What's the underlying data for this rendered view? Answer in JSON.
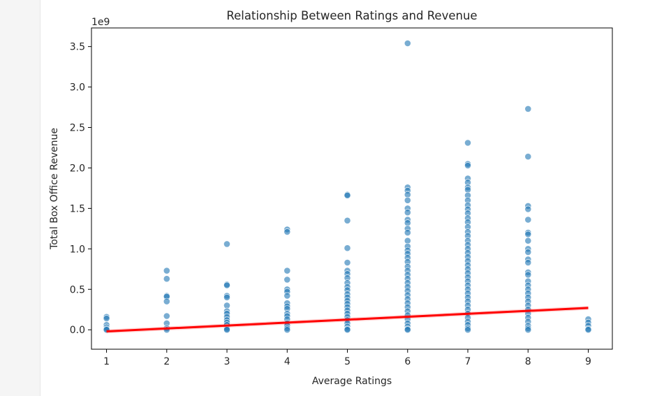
{
  "chart_data": {
    "type": "scatter",
    "title": "Relationship Between Ratings and Revenue",
    "xlabel": "Average Ratings",
    "ylabel": "Total Box Office Revenue",
    "y_offset_label": "1e9",
    "xlim": [
      0.75,
      9.4
    ],
    "ylim": [
      -0.24,
      3.73
    ],
    "x_ticks": [
      1,
      2,
      3,
      4,
      5,
      6,
      7,
      8,
      9
    ],
    "y_ticks": [
      0.0,
      0.5,
      1.0,
      1.5,
      2.0,
      2.5,
      3.0,
      3.5
    ],
    "y_tick_labels": [
      "0.0",
      "0.5",
      "1.0",
      "1.5",
      "2.0",
      "2.5",
      "3.0",
      "3.5"
    ],
    "grid": false,
    "point_color": "#1f77b4",
    "line_color": "#ff0000",
    "regression_line": {
      "x": [
        1,
        9
      ],
      "y": [
        -0.02,
        0.27
      ]
    },
    "points": [
      {
        "x": 1,
        "y": 0.16
      },
      {
        "x": 1,
        "y": 0.14
      },
      {
        "x": 1,
        "y": 0.06
      },
      {
        "x": 1,
        "y": 0.03
      },
      {
        "x": 1,
        "y": 0.01
      },
      {
        "x": 1,
        "y": 0.0
      },
      {
        "x": 2,
        "y": 0.73
      },
      {
        "x": 2,
        "y": 0.63
      },
      {
        "x": 2,
        "y": 0.42
      },
      {
        "x": 2,
        "y": 0.41
      },
      {
        "x": 2,
        "y": 0.35
      },
      {
        "x": 2,
        "y": 0.17
      },
      {
        "x": 2,
        "y": 0.08
      },
      {
        "x": 2,
        "y": 0.02
      },
      {
        "x": 2,
        "y": 0.0
      },
      {
        "x": 3,
        "y": 1.06
      },
      {
        "x": 3,
        "y": 0.56
      },
      {
        "x": 3,
        "y": 0.55
      },
      {
        "x": 3,
        "y": 0.42
      },
      {
        "x": 3,
        "y": 0.4
      },
      {
        "x": 3,
        "y": 0.3
      },
      {
        "x": 3,
        "y": 0.23
      },
      {
        "x": 3,
        "y": 0.2
      },
      {
        "x": 3,
        "y": 0.16
      },
      {
        "x": 3,
        "y": 0.12
      },
      {
        "x": 3,
        "y": 0.09
      },
      {
        "x": 3,
        "y": 0.06
      },
      {
        "x": 3,
        "y": 0.03
      },
      {
        "x": 3,
        "y": 0.01
      },
      {
        "x": 3,
        "y": 0.0
      },
      {
        "x": 4,
        "y": 1.24
      },
      {
        "x": 4,
        "y": 1.21
      },
      {
        "x": 4,
        "y": 0.73
      },
      {
        "x": 4,
        "y": 0.62
      },
      {
        "x": 4,
        "y": 0.5
      },
      {
        "x": 4,
        "y": 0.47
      },
      {
        "x": 4,
        "y": 0.42
      },
      {
        "x": 4,
        "y": 0.33
      },
      {
        "x": 4,
        "y": 0.29
      },
      {
        "x": 4,
        "y": 0.26
      },
      {
        "x": 4,
        "y": 0.2
      },
      {
        "x": 4,
        "y": 0.17
      },
      {
        "x": 4,
        "y": 0.13
      },
      {
        "x": 4,
        "y": 0.08
      },
      {
        "x": 4,
        "y": 0.05
      },
      {
        "x": 4,
        "y": 0.02
      },
      {
        "x": 4,
        "y": 0.0
      },
      {
        "x": 5,
        "y": 1.67
      },
      {
        "x": 5,
        "y": 1.66
      },
      {
        "x": 5,
        "y": 1.35
      },
      {
        "x": 5,
        "y": 1.01
      },
      {
        "x": 5,
        "y": 0.83
      },
      {
        "x": 5,
        "y": 0.73
      },
      {
        "x": 5,
        "y": 0.69
      },
      {
        "x": 5,
        "y": 0.64
      },
      {
        "x": 5,
        "y": 0.58
      },
      {
        "x": 5,
        "y": 0.53
      },
      {
        "x": 5,
        "y": 0.49
      },
      {
        "x": 5,
        "y": 0.44
      },
      {
        "x": 5,
        "y": 0.4
      },
      {
        "x": 5,
        "y": 0.36
      },
      {
        "x": 5,
        "y": 0.32
      },
      {
        "x": 5,
        "y": 0.28
      },
      {
        "x": 5,
        "y": 0.24
      },
      {
        "x": 5,
        "y": 0.2
      },
      {
        "x": 5,
        "y": 0.16
      },
      {
        "x": 5,
        "y": 0.12
      },
      {
        "x": 5,
        "y": 0.08
      },
      {
        "x": 5,
        "y": 0.04
      },
      {
        "x": 5,
        "y": 0.01
      },
      {
        "x": 5,
        "y": 0.0
      },
      {
        "x": 6,
        "y": 3.54
      },
      {
        "x": 6,
        "y": 1.76
      },
      {
        "x": 6,
        "y": 1.72
      },
      {
        "x": 6,
        "y": 1.67
      },
      {
        "x": 6,
        "y": 1.6
      },
      {
        "x": 6,
        "y": 1.5
      },
      {
        "x": 6,
        "y": 1.45
      },
      {
        "x": 6,
        "y": 1.36
      },
      {
        "x": 6,
        "y": 1.32
      },
      {
        "x": 6,
        "y": 1.25
      },
      {
        "x": 6,
        "y": 1.2
      },
      {
        "x": 6,
        "y": 1.1
      },
      {
        "x": 6,
        "y": 1.03
      },
      {
        "x": 6,
        "y": 0.98
      },
      {
        "x": 6,
        "y": 0.94
      },
      {
        "x": 6,
        "y": 0.89
      },
      {
        "x": 6,
        "y": 0.84
      },
      {
        "x": 6,
        "y": 0.78
      },
      {
        "x": 6,
        "y": 0.73
      },
      {
        "x": 6,
        "y": 0.68
      },
      {
        "x": 6,
        "y": 0.63
      },
      {
        "x": 6,
        "y": 0.58
      },
      {
        "x": 6,
        "y": 0.53
      },
      {
        "x": 6,
        "y": 0.48
      },
      {
        "x": 6,
        "y": 0.43
      },
      {
        "x": 6,
        "y": 0.38
      },
      {
        "x": 6,
        "y": 0.33
      },
      {
        "x": 6,
        "y": 0.28
      },
      {
        "x": 6,
        "y": 0.23
      },
      {
        "x": 6,
        "y": 0.18
      },
      {
        "x": 6,
        "y": 0.13
      },
      {
        "x": 6,
        "y": 0.08
      },
      {
        "x": 6,
        "y": 0.04
      },
      {
        "x": 6,
        "y": 0.01
      },
      {
        "x": 6,
        "y": 0.0
      },
      {
        "x": 7,
        "y": 2.31
      },
      {
        "x": 7,
        "y": 2.05
      },
      {
        "x": 7,
        "y": 2.03
      },
      {
        "x": 7,
        "y": 1.87
      },
      {
        "x": 7,
        "y": 1.82
      },
      {
        "x": 7,
        "y": 1.76
      },
      {
        "x": 7,
        "y": 1.73
      },
      {
        "x": 7,
        "y": 1.66
      },
      {
        "x": 7,
        "y": 1.6
      },
      {
        "x": 7,
        "y": 1.54
      },
      {
        "x": 7,
        "y": 1.49
      },
      {
        "x": 7,
        "y": 1.44
      },
      {
        "x": 7,
        "y": 1.38
      },
      {
        "x": 7,
        "y": 1.33
      },
      {
        "x": 7,
        "y": 1.27
      },
      {
        "x": 7,
        "y": 1.21
      },
      {
        "x": 7,
        "y": 1.16
      },
      {
        "x": 7,
        "y": 1.1
      },
      {
        "x": 7,
        "y": 1.05
      },
      {
        "x": 7,
        "y": 1.0
      },
      {
        "x": 7,
        "y": 0.95
      },
      {
        "x": 7,
        "y": 0.9
      },
      {
        "x": 7,
        "y": 0.85
      },
      {
        "x": 7,
        "y": 0.8
      },
      {
        "x": 7,
        "y": 0.75
      },
      {
        "x": 7,
        "y": 0.7
      },
      {
        "x": 7,
        "y": 0.65
      },
      {
        "x": 7,
        "y": 0.6
      },
      {
        "x": 7,
        "y": 0.55
      },
      {
        "x": 7,
        "y": 0.5
      },
      {
        "x": 7,
        "y": 0.45
      },
      {
        "x": 7,
        "y": 0.4
      },
      {
        "x": 7,
        "y": 0.35
      },
      {
        "x": 7,
        "y": 0.3
      },
      {
        "x": 7,
        "y": 0.25
      },
      {
        "x": 7,
        "y": 0.2
      },
      {
        "x": 7,
        "y": 0.15
      },
      {
        "x": 7,
        "y": 0.1
      },
      {
        "x": 7,
        "y": 0.06
      },
      {
        "x": 7,
        "y": 0.02
      },
      {
        "x": 7,
        "y": 0.0
      },
      {
        "x": 8,
        "y": 2.73
      },
      {
        "x": 8,
        "y": 2.14
      },
      {
        "x": 8,
        "y": 1.53
      },
      {
        "x": 8,
        "y": 1.49
      },
      {
        "x": 8,
        "y": 1.36
      },
      {
        "x": 8,
        "y": 1.2
      },
      {
        "x": 8,
        "y": 1.18
      },
      {
        "x": 8,
        "y": 1.1
      },
      {
        "x": 8,
        "y": 1.0
      },
      {
        "x": 8,
        "y": 0.96
      },
      {
        "x": 8,
        "y": 0.87
      },
      {
        "x": 8,
        "y": 0.83
      },
      {
        "x": 8,
        "y": 0.71
      },
      {
        "x": 8,
        "y": 0.68
      },
      {
        "x": 8,
        "y": 0.6
      },
      {
        "x": 8,
        "y": 0.55
      },
      {
        "x": 8,
        "y": 0.5
      },
      {
        "x": 8,
        "y": 0.45
      },
      {
        "x": 8,
        "y": 0.4
      },
      {
        "x": 8,
        "y": 0.35
      },
      {
        "x": 8,
        "y": 0.3
      },
      {
        "x": 8,
        "y": 0.25
      },
      {
        "x": 8,
        "y": 0.2
      },
      {
        "x": 8,
        "y": 0.15
      },
      {
        "x": 8,
        "y": 0.1
      },
      {
        "x": 8,
        "y": 0.05
      },
      {
        "x": 8,
        "y": 0.02
      },
      {
        "x": 8,
        "y": 0.0
      },
      {
        "x": 9,
        "y": 0.13
      },
      {
        "x": 9,
        "y": 0.09
      },
      {
        "x": 9,
        "y": 0.05
      },
      {
        "x": 9,
        "y": 0.01
      },
      {
        "x": 9,
        "y": 0.0
      }
    ]
  }
}
